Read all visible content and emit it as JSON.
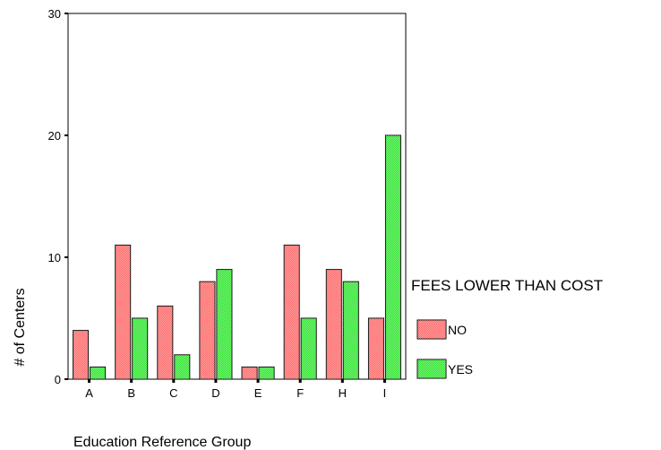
{
  "chart_data": {
    "type": "bar",
    "categories": [
      "A",
      "B",
      "C",
      "D",
      "E",
      "F",
      "H",
      "I"
    ],
    "series": [
      {
        "name": "NO",
        "values": [
          4,
          11,
          6,
          8,
          1,
          11,
          9,
          5
        ],
        "color": "#ff6b6b"
      },
      {
        "name": "YES",
        "values": [
          1,
          5,
          2,
          9,
          1,
          5,
          8,
          20
        ],
        "color": "#33e633"
      }
    ],
    "title": "",
    "xlabel": "Education Reference Group",
    "ylabel": "# of Centers",
    "ylim": [
      0,
      30
    ],
    "yticks": [
      0,
      10,
      20,
      30
    ],
    "legend_title": "FEES LOWER THAN COST",
    "legend_position": "right",
    "grid": false
  }
}
